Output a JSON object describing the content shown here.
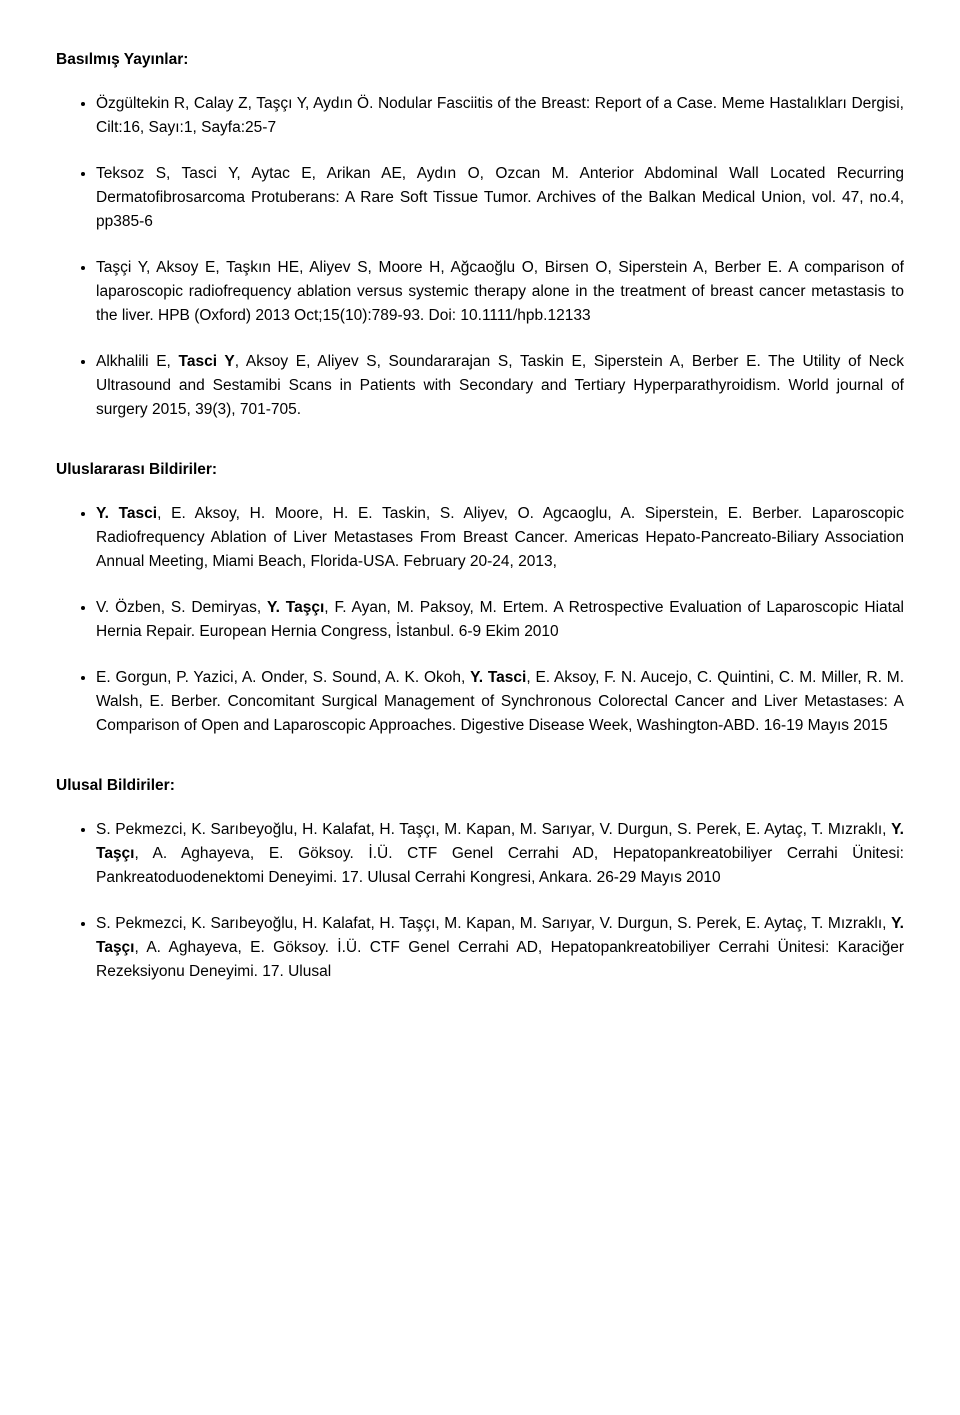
{
  "sections": {
    "printed": {
      "heading": "Basılmış Yayınlar:",
      "items": [
        {
          "html": "Özgültekin R, Calay Z, Taşçı Y, Aydın Ö. Nodular Fasciitis of the Breast: Report of a Case. Meme Hastalıkları Dergisi, Cilt:16, Sayı:1, Sayfa:25-7"
        },
        {
          "html": "Teksoz S, Tasci Y, Aytac E, Arikan AE, Aydın O, Ozcan M. Anterior Abdominal Wall Located Recurring Dermatofibrosarcoma Protuberans: A Rare Soft Tissue Tumor. Archives of the Balkan Medical Union, vol. 47, no.4, pp385-6"
        },
        {
          "html": "Taşçi Y, Aksoy E, Taşkın HE, Aliyev S, Moore H, Ağcaoğlu O, Birsen O, Siperstein A, Berber E. A comparison of laparoscopic radiofrequency ablation versus systemic therapy alone in the treatment of breast cancer metastasis to the liver. HPB (Oxford) 2013 Oct;15(10):789-93. Doi: 10.1111/hpb.12133"
        },
        {
          "html": "Alkhalili E, <span class=\"b\">Tasci Y</span>, Aksoy E, Aliyev S, Soundararajan S, Taskin E, Siperstein A, Berber E. The Utility of Neck Ultrasound and Sestamibi Scans in Patients with Secondary and Tertiary Hyperparathyroidism. World journal of surgery 2015, 39(3), 701-705."
        }
      ]
    },
    "international": {
      "heading": "Uluslararası Bildiriler:",
      "items": [
        {
          "html": "<span class=\"b\">Y. Tasci</span>, E. Aksoy, H. Moore, H. E. Taskin, S. Aliyev, O. Agcaoglu, A. Siperstein, E. Berber. Laparoscopic Radiofrequency Ablation of Liver Metastases From Breast Cancer. Americas Hepato-Pancreato-Biliary Association Annual Meeting, Miami Beach, Florida-USA.  February 20-24, 2013,"
        },
        {
          "html": "V. Özben, S. Demiryas, <span class=\"b\">Y. Taşçı</span>, F. Ayan, M. Paksoy, M. Ertem. A Retrospective Evaluation of Laparoscopic Hiatal Hernia Repair. European Hernia Congress, İstanbul. 6-9 Ekim 2010"
        },
        {
          "html": "E. Gorgun, P. Yazici, A. Onder, S. Sound, A. K. Okoh, <span class=\"b\">Y. Tasci</span>, E. Aksoy, F. N. Aucejo, C. Quintini, C. M. Miller, R. M. Walsh, E. Berber. Concomitant Surgical Management of Synchronous Colorectal Cancer and Liver Metastases: A Comparison of Open and Laparoscopic Approaches. Digestive Disease Week, Washington-ABD. 16-19 Mayıs 2015"
        }
      ]
    },
    "national": {
      "heading": "Ulusal Bildiriler:",
      "items": [
        {
          "html": "S. Pekmezci, K. Sarıbeyoğlu, H. Kalafat, H. Taşçı, M. Kapan, M. Sarıyar, V. Durgun, S. Perek, E. Aytaç, T. Mızraklı, <span class=\"b\">Y. Taşçı</span>, A. Aghayeva, E. Göksoy. İ.Ü. CTF Genel Cerrahi AD, Hepatopankreatobiliyer Cerrahi Ünitesi: Pankreatoduodenektomi Deneyimi. 17. Ulusal Cerrahi Kongresi, Ankara. 26-29 Mayıs 2010"
        },
        {
          "html": "S. Pekmezci, K. Sarıbeyoğlu, H. Kalafat, H. Taşçı, M. Kapan, M. Sarıyar, V. Durgun, S. Perek, E. Aytaç, T. Mızraklı, <span class=\"b\">Y. Taşçı</span>, A. Aghayeva, E. Göksoy. İ.Ü. CTF Genel Cerrahi AD, Hepatopankreatobiliyer Cerrahi Ünitesi: Karaciğer Rezeksiyonu Deneyimi. 17. Ulusal"
        }
      ]
    }
  }
}
